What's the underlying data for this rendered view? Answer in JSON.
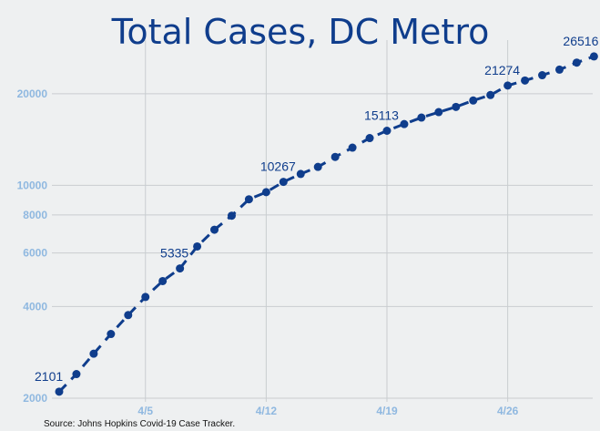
{
  "chart_data": {
    "type": "line",
    "title": "Total Cases, DC Metro",
    "xlabel": "",
    "ylabel": "",
    "yscale": "log",
    "ylim": [
      2000,
      30000
    ],
    "yticks": [
      2000,
      4000,
      6000,
      8000,
      10000,
      20000
    ],
    "xticks": [
      "4/5",
      "4/12",
      "4/19",
      "4/26"
    ],
    "grid": true,
    "color": "#0f3d8c",
    "x": [
      "3/31",
      "4/1",
      "4/2",
      "4/3",
      "4/4",
      "4/5",
      "4/6",
      "4/7",
      "4/8",
      "4/9",
      "4/10",
      "4/11",
      "4/12",
      "4/13",
      "4/14",
      "4/15",
      "4/16",
      "4/17",
      "4/18",
      "4/19",
      "4/20",
      "4/21",
      "4/22",
      "4/23",
      "4/24",
      "4/25",
      "4/26",
      "4/27",
      "4/28",
      "4/29",
      "4/30",
      "5/1"
    ],
    "series": [
      {
        "values": [
          2101,
          2400,
          2800,
          3250,
          3750,
          4300,
          4850,
          5335,
          6300,
          7150,
          7950,
          9000,
          9500,
          10267,
          10900,
          11500,
          12400,
          13300,
          14300,
          15113,
          15900,
          16700,
          17400,
          18100,
          19000,
          19800,
          21274,
          22100,
          23000,
          24000,
          25300,
          26516
        ]
      }
    ],
    "data_labels": [
      {
        "x": "3/31",
        "text": "2101"
      },
      {
        "x": "4/7",
        "text": "5335"
      },
      {
        "x": "4/13",
        "text": "10267"
      },
      {
        "x": "4/19",
        "text": "15113"
      },
      {
        "x": "4/26",
        "text": "21274"
      },
      {
        "x": "5/1",
        "text": "26516"
      }
    ]
  },
  "source": "Source: Johns Hopkins Covid-19 Case Tracker."
}
